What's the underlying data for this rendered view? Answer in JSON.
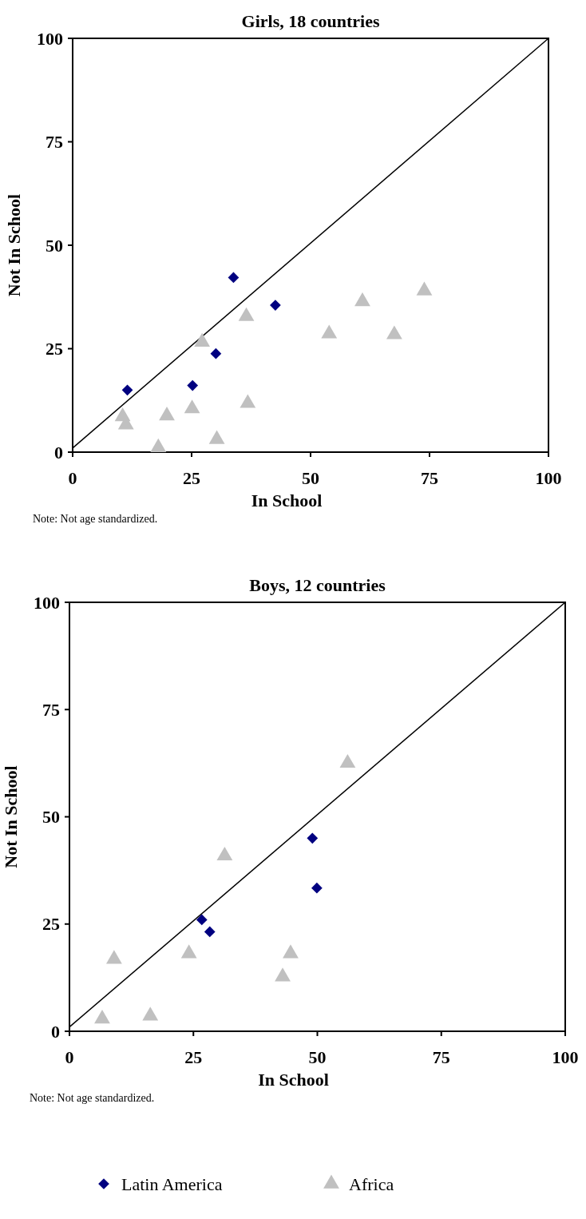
{
  "chart_data": [
    {
      "type": "scatter",
      "title": "Girls, 18 countries",
      "xlabel": "In School",
      "ylabel": "Not In School",
      "annotations": [
        "Note: Not age standardized."
      ],
      "xlim": [
        0,
        100
      ],
      "ylim": [
        0,
        100
      ],
      "xticks": [
        0,
        25,
        50,
        75,
        100
      ],
      "yticks": [
        0,
        25,
        50,
        75,
        100
      ],
      "grid": false,
      "legend": false,
      "series": [
        {
          "type": "line",
          "color": "#000000",
          "marker": "none",
          "line_style": "solid",
          "x": [
            0,
            100
          ],
          "values": [
            1,
            100
          ]
        },
        {
          "color": "#000080",
          "marker": "diamond",
          "x": [
            11.5,
            25.2,
            30.1,
            33.8,
            42.6
          ],
          "values": [
            15.0,
            16.1,
            23.8,
            42.2,
            35.5
          ]
        },
        {
          "color": "#c0c0c0",
          "marker": "triangle",
          "x": [
            10.5,
            11.2,
            18.0,
            19.8,
            25.1,
            27.2,
            30.3,
            36.5,
            36.8,
            53.9,
            60.9,
            67.6,
            73.9
          ],
          "values": [
            8.6,
            6.6,
            1.1,
            8.8,
            10.5,
            26.6,
            3.1,
            32.8,
            11.8,
            28.6,
            36.4,
            28.4,
            39.0
          ]
        }
      ]
    },
    {
      "type": "scatter",
      "title": "Boys, 12 countries",
      "xlabel": "In School",
      "ylabel": "Not In School",
      "annotations": [
        "Note: Not age standardized."
      ],
      "xlim": [
        0,
        100
      ],
      "ylim": [
        0,
        100
      ],
      "xticks": [
        0,
        25,
        50,
        75,
        100
      ],
      "yticks": [
        0,
        25,
        50,
        75,
        100
      ],
      "grid": false,
      "legend": "bottom",
      "series": [
        {
          "type": "line",
          "color": "#000000",
          "marker": "none",
          "line_style": "solid",
          "x": [
            0,
            100
          ],
          "values": [
            1,
            100
          ]
        },
        {
          "name": "Latin America",
          "color": "#000080",
          "marker": "diamond",
          "x": [
            26.7,
            28.3,
            49.0,
            49.9
          ],
          "values": [
            26.0,
            23.2,
            45.0,
            33.4
          ]
        },
        {
          "name": "Africa",
          "color": "#c0c0c0",
          "marker": "triangle",
          "x": [
            6.6,
            9.0,
            16.3,
            24.1,
            31.3,
            43.0,
            44.6,
            56.1
          ],
          "values": [
            2.9,
            16.8,
            3.6,
            18.1,
            40.9,
            12.7,
            18.1,
            62.5
          ]
        }
      ]
    }
  ]
}
